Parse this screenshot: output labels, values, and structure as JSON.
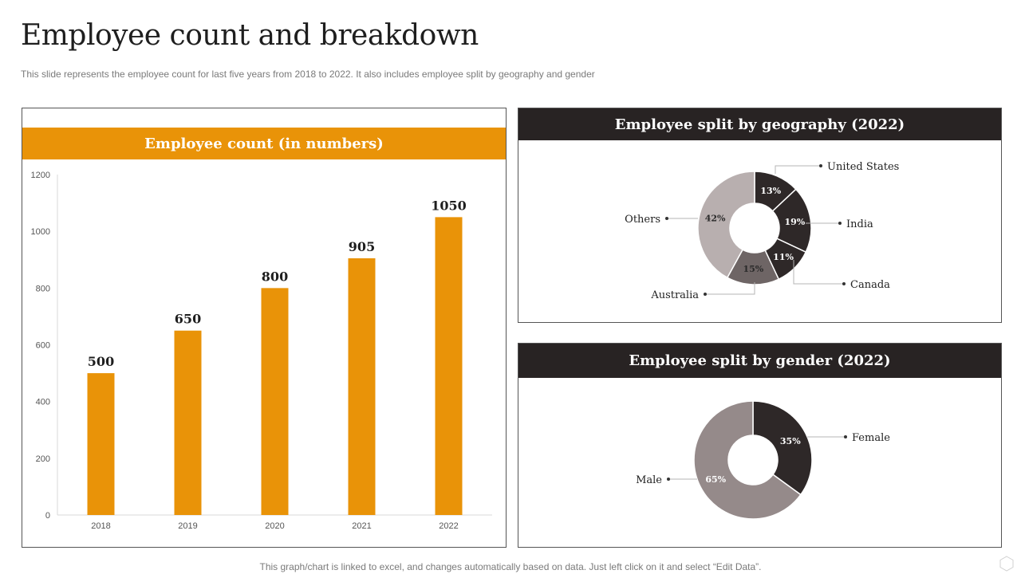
{
  "page": {
    "title": "Employee count and breakdown",
    "subtitle": "This slide represents the employee count for last five years from 2018 to 2022. It also includes employee split by geography and gender",
    "footer": "This graph/chart is linked to excel,  and changes automatically based on data. Just left click on it and select “Edit Data”."
  },
  "colors": {
    "accent_orange": "#e99308",
    "header_dark": "#282323",
    "dark_slice": "#2e2828",
    "mid_slice": "#6e6565",
    "light_slice": "#b8afaf",
    "gender_male": "#958a8a"
  },
  "chart_data": [
    {
      "type": "bar",
      "title": "Employee count (in numbers)",
      "categories": [
        "2018",
        "2019",
        "2020",
        "2021",
        "2022"
      ],
      "values": [
        500,
        650,
        800,
        905,
        1050
      ],
      "ylim": [
        0,
        1200
      ],
      "yticks": [
        0,
        200,
        400,
        600,
        800,
        1000,
        1200
      ],
      "xlabel": "",
      "ylabel": "",
      "grid": false,
      "data_labels": true
    },
    {
      "type": "pie",
      "title": "Employee split by geography (2022)",
      "donut": true,
      "slices": [
        {
          "label": "United States",
          "value": 13,
          "display": "13%"
        },
        {
          "label": "India",
          "value": 19,
          "display": "19%"
        },
        {
          "label": "Canada",
          "value": 11,
          "display": "11%"
        },
        {
          "label": "Australia",
          "value": 15,
          "display": "15%"
        },
        {
          "label": "Others",
          "value": 42,
          "display": "42%"
        }
      ]
    },
    {
      "type": "pie",
      "title": "Employee split by gender (2022)",
      "donut": true,
      "slices": [
        {
          "label": "Female",
          "value": 35,
          "display": "35%"
        },
        {
          "label": "Male",
          "value": 65,
          "display": "65%"
        }
      ]
    }
  ]
}
